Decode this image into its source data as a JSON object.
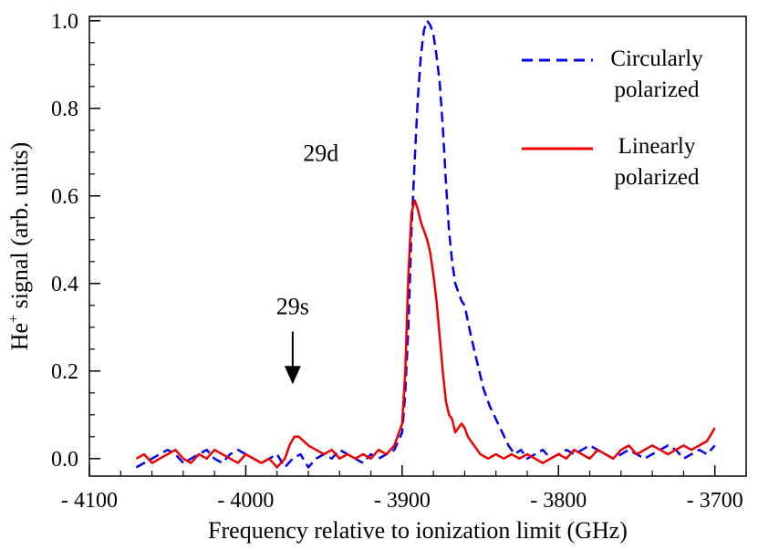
{
  "chart_data": {
    "type": "line",
    "xlabel": "Frequency relative to ionization limit (GHz)",
    "ylabel_main": "He",
    "ylabel_sup": "+",
    "ylabel_rest": " signal (arb. units)",
    "xlim": [
      -4100,
      -3680
    ],
    "ylim": [
      -0.04,
      1.01
    ],
    "xticks": [
      -4100,
      -4000,
      -3900,
      -3800,
      -3700
    ],
    "xtick_labels": [
      "- 4100",
      "- 4000",
      "- 3900",
      "- 3800",
      "- 3700"
    ],
    "yticks": [
      0.0,
      0.2,
      0.4,
      0.6,
      0.8,
      1.0
    ],
    "ytick_labels": [
      "0.0",
      "0.2",
      "0.4",
      "0.6",
      "0.8",
      "1.0"
    ],
    "grid": false,
    "legend_position": "top-right",
    "legend_lines": [
      [
        "Circularly",
        "polarized"
      ],
      [
        "Linearly",
        "polarized"
      ]
    ],
    "series": [
      {
        "name": "Circularly polarized",
        "color": "#0000ee",
        "dash": "dashed",
        "x": [
          -4070,
          -4065,
          -4060,
          -4055,
          -4050,
          -4045,
          -4040,
          -4035,
          -4030,
          -4025,
          -4020,
          -4015,
          -4010,
          -4005,
          -4000,
          -3995,
          -3990,
          -3985,
          -3980,
          -3975,
          -3970,
          -3965,
          -3960,
          -3955,
          -3950,
          -3945,
          -3940,
          -3935,
          -3930,
          -3925,
          -3920,
          -3915,
          -3910,
          -3905,
          -3900,
          -3898,
          -3896,
          -3894,
          -3892,
          -3890,
          -3888,
          -3886,
          -3884,
          -3882,
          -3880,
          -3878,
          -3876,
          -3874,
          -3872,
          -3870,
          -3868,
          -3866,
          -3864,
          -3862,
          -3860,
          -3856,
          -3852,
          -3848,
          -3844,
          -3840,
          -3836,
          -3832,
          -3828,
          -3824,
          -3820,
          -3815,
          -3810,
          -3805,
          -3800,
          -3795,
          -3790,
          -3785,
          -3780,
          -3775,
          -3770,
          -3765,
          -3760,
          -3755,
          -3750,
          -3745,
          -3740,
          -3735,
          -3730,
          -3725,
          -3720,
          -3715,
          -3710,
          -3705,
          -3700
        ],
        "y": [
          -0.02,
          -0.01,
          0.0,
          0.01,
          0.02,
          0.01,
          -0.01,
          0.0,
          0.01,
          0.02,
          0.0,
          -0.01,
          0.01,
          0.02,
          0.01,
          0.0,
          -0.01,
          0.0,
          0.01,
          -0.02,
          0.0,
          0.01,
          -0.02,
          0.0,
          0.01,
          0.0,
          0.02,
          0.01,
          0.0,
          -0.01,
          0.01,
          0.0,
          0.01,
          0.02,
          0.06,
          0.15,
          0.3,
          0.52,
          0.68,
          0.82,
          0.92,
          0.98,
          1.0,
          0.99,
          0.97,
          0.92,
          0.86,
          0.76,
          0.63,
          0.52,
          0.45,
          0.4,
          0.38,
          0.36,
          0.35,
          0.28,
          0.22,
          0.16,
          0.12,
          0.09,
          0.06,
          0.03,
          0.01,
          0.02,
          0.0,
          0.01,
          0.02,
          0.0,
          0.01,
          0.02,
          0.01,
          0.02,
          0.03,
          0.02,
          0.01,
          0.0,
          0.01,
          0.02,
          0.01,
          0.0,
          0.01,
          0.02,
          0.03,
          0.02,
          0.0,
          0.01,
          0.02,
          0.01,
          0.03
        ]
      },
      {
        "name": "Linearly polarized",
        "color": "#ee0000",
        "dash": "solid",
        "x": [
          -4070,
          -4065,
          -4060,
          -4055,
          -4050,
          -4045,
          -4040,
          -4035,
          -4030,
          -4025,
          -4020,
          -4015,
          -4010,
          -4005,
          -4000,
          -3995,
          -3990,
          -3985,
          -3980,
          -3975,
          -3972,
          -3969,
          -3966,
          -3963,
          -3960,
          -3955,
          -3950,
          -3945,
          -3940,
          -3935,
          -3930,
          -3925,
          -3920,
          -3915,
          -3910,
          -3905,
          -3900,
          -3898,
          -3896,
          -3894,
          -3892,
          -3890,
          -3888,
          -3886,
          -3884,
          -3882,
          -3880,
          -3878,
          -3876,
          -3874,
          -3872,
          -3870,
          -3868,
          -3866,
          -3864,
          -3862,
          -3860,
          -3858,
          -3856,
          -3854,
          -3852,
          -3850,
          -3845,
          -3840,
          -3835,
          -3830,
          -3825,
          -3820,
          -3815,
          -3810,
          -3805,
          -3800,
          -3795,
          -3790,
          -3785,
          -3780,
          -3775,
          -3770,
          -3765,
          -3760,
          -3755,
          -3750,
          -3745,
          -3740,
          -3735,
          -3730,
          -3725,
          -3720,
          -3715,
          -3710,
          -3705,
          -3700
        ],
        "y": [
          0.0,
          0.01,
          -0.01,
          0.0,
          0.01,
          0.02,
          0.0,
          -0.01,
          0.01,
          0.0,
          0.02,
          0.01,
          0.0,
          -0.01,
          0.01,
          0.0,
          -0.01,
          0.0,
          -0.02,
          0.0,
          0.03,
          0.05,
          0.05,
          0.04,
          0.03,
          0.02,
          0.01,
          0.02,
          0.0,
          0.01,
          0.0,
          0.01,
          0.0,
          0.02,
          0.01,
          0.03,
          0.08,
          0.2,
          0.42,
          0.56,
          0.59,
          0.57,
          0.54,
          0.52,
          0.5,
          0.47,
          0.42,
          0.36,
          0.28,
          0.2,
          0.13,
          0.1,
          0.09,
          0.06,
          0.07,
          0.08,
          0.07,
          0.05,
          0.04,
          0.03,
          0.02,
          0.01,
          0.0,
          0.01,
          0.0,
          0.01,
          0.0,
          0.01,
          0.0,
          -0.01,
          0.0,
          0.01,
          0.0,
          0.02,
          0.01,
          0.0,
          0.02,
          0.01,
          0.0,
          0.02,
          0.03,
          0.01,
          0.02,
          0.03,
          0.02,
          0.01,
          0.02,
          0.03,
          0.02,
          0.03,
          0.04,
          0.07
        ]
      }
    ],
    "annotations": {
      "peak_29d": {
        "text": "29d",
        "x": -3952,
        "y": 0.68
      },
      "peak_29s": {
        "text": "29s",
        "x": -3970,
        "y": 0.33
      },
      "arrow_29s": {
        "x": -3970,
        "y_from": 0.29,
        "y_to": 0.17
      }
    }
  }
}
